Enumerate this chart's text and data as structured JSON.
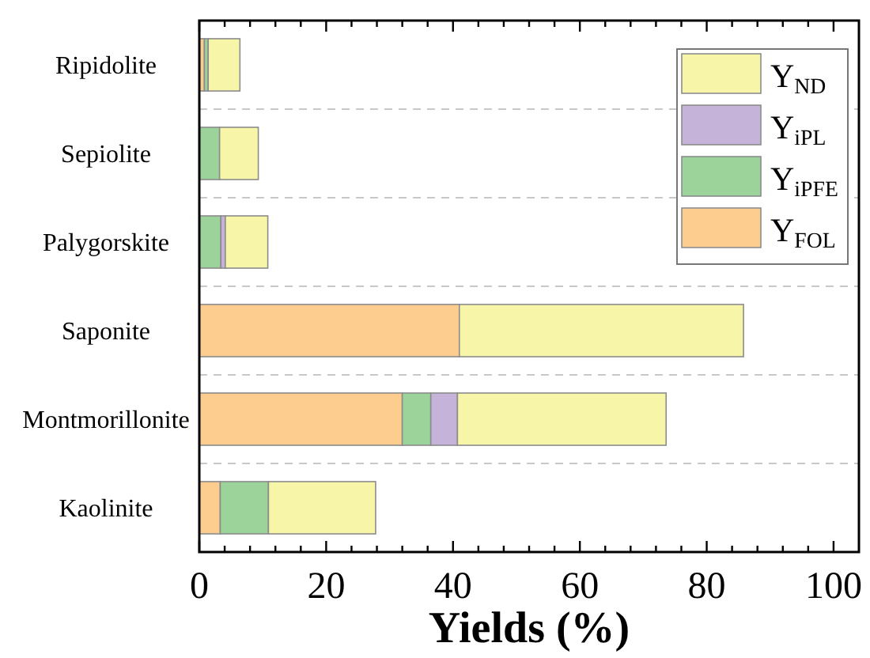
{
  "chart_data": {
    "type": "bar",
    "orientation": "horizontal",
    "stacked": true,
    "xlabel": "Yields (%)",
    "categories": [
      "Ripidolite",
      "Sepiolite",
      "Palygorskite",
      "Saponite",
      "Montmorillonite",
      "Kaolinite"
    ],
    "series": [
      {
        "name": "Y$_{FOL}$",
        "color": "#fdcc8f",
        "values": [
          0.8,
          null,
          null,
          41.0,
          32.0,
          3.3
        ]
      },
      {
        "name": "Y$_{iPFE}$",
        "color": "#9bd39b",
        "values": [
          0.6,
          3.2,
          3.4,
          null,
          4.5,
          7.6
        ]
      },
      {
        "name": "Y$_{iPL}$",
        "color": "#c5b3d9",
        "values": [
          null,
          null,
          0.7,
          null,
          4.2,
          null
        ]
      },
      {
        "name": "Y$_{ND}$",
        "color": "#f7f5a8",
        "values": [
          5.0,
          6.1,
          6.7,
          44.8,
          32.9,
          16.9
        ]
      }
    ],
    "xlim": [
      0,
      104
    ],
    "xticks": [
      0,
      {
        "value": 4,
        "label": null
      },
      {
        "value": 8,
        "label": null
      },
      {
        "value": 12,
        "label": null
      },
      {
        "value": 16,
        "label": null
      },
      20,
      {
        "value": 24,
        "label": null
      },
      {
        "value": 28,
        "label": null
      },
      {
        "value": 32,
        "label": null
      },
      {
        "value": 36,
        "label": null
      },
      40,
      {
        "value": 44,
        "label": null
      },
      {
        "value": 48,
        "label": null
      },
      {
        "value": 52,
        "label": null
      },
      {
        "value": 56,
        "label": null
      },
      60,
      {
        "value": 64,
        "label": null
      },
      {
        "value": 68,
        "label": null
      },
      {
        "value": 72,
        "label": null
      },
      {
        "value": 76,
        "label": null
      },
      80,
      {
        "value": 84,
        "label": null
      },
      {
        "value": 88,
        "label": null
      },
      {
        "value": 92,
        "label": null
      },
      {
        "value": 96,
        "label": null
      },
      100
    ],
    "grid": "y",
    "legend": "top right"
  }
}
